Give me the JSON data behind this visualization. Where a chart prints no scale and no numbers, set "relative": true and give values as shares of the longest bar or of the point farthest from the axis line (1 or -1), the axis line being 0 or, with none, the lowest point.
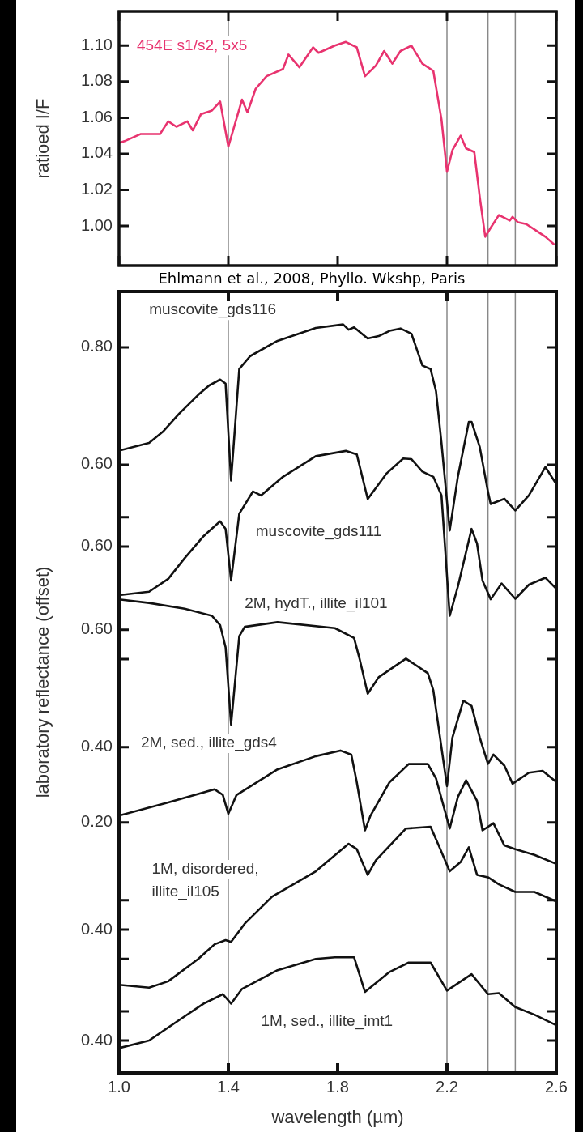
{
  "chart_data": [
    {
      "type": "line",
      "ylabel": "ratioed I/F",
      "xlim": [
        1.0,
        2.6
      ],
      "ylim": [
        0.978,
        1.119
      ],
      "xticks": [
        1,
        1.4,
        1.8,
        2.2,
        2.6
      ],
      "yticks": [
        {
          "value": 1.0,
          "label": "1.00"
        },
        1.02,
        1.04,
        1.06,
        1.08,
        {
          "value": 1.1,
          "label": "1.10"
        }
      ],
      "tick_labels": "y",
      "marker": "none",
      "line_style": "solid",
      "ref_lines": [
        {
          "axis": "x",
          "value": 1.4,
          "color": "#888888"
        },
        {
          "axis": "x",
          "value": 2.2,
          "color": "#888888"
        },
        {
          "axis": "x",
          "value": 2.35,
          "color": "#888888"
        },
        {
          "axis": "x",
          "value": 2.45,
          "color": "#888888"
        }
      ],
      "annotations": [
        "Ehlmann et al., 2008, Phyllo. Wkshp, Paris"
      ],
      "series": [
        {
          "name": "454E s1/s2, 5x5",
          "color": "#e8336f",
          "x": [
            1.0,
            1.02,
            1.08,
            1.15,
            1.18,
            1.21,
            1.25,
            1.27,
            1.3,
            1.34,
            1.37,
            1.4,
            1.45,
            1.47,
            1.5,
            1.54,
            1.6,
            1.62,
            1.66,
            1.71,
            1.73,
            1.79,
            1.83,
            1.87,
            1.9,
            1.94,
            1.97,
            2.0,
            2.03,
            2.07,
            2.11,
            2.15,
            2.18,
            2.2,
            2.22,
            2.25,
            2.27,
            2.3,
            2.32,
            2.34,
            2.36,
            2.39,
            2.43,
            2.44,
            2.46,
            2.49,
            2.53,
            2.56,
            2.59
          ],
          "values": [
            1.046,
            1.047,
            1.051,
            1.051,
            1.058,
            1.055,
            1.058,
            1.053,
            1.062,
            1.064,
            1.069,
            1.044,
            1.07,
            1.063,
            1.076,
            1.083,
            1.087,
            1.095,
            1.088,
            1.099,
            1.096,
            1.1,
            1.102,
            1.099,
            1.083,
            1.089,
            1.097,
            1.09,
            1.097,
            1.1,
            1.09,
            1.086,
            1.059,
            1.03,
            1.042,
            1.05,
            1.043,
            1.041,
            1.016,
            0.994,
            0.999,
            1.006,
            1.003,
            1.005,
            1.002,
            1.001,
            0.997,
            0.994,
            0.99
          ]
        }
      ]
    },
    {
      "type": "line",
      "ylabel": "laboratory reflectance (offset)",
      "xlim": [
        1.0,
        2.6
      ],
      "ylim": [
        -0.436,
        0.895
      ],
      "xticks": [
        1,
        1.4,
        1.8,
        2.2,
        2.6
      ],
      "yticks": [
        {
          "value": 0.8,
          "label": "0.80"
        },
        {
          "value": 0.6,
          "label": "0.60"
        }
      ],
      "tick_labels": "y",
      "marker": "none",
      "line_style": "solid",
      "ref_lines": [
        {
          "axis": "x",
          "value": 1.4,
          "color": "#888888"
        },
        {
          "axis": "x",
          "value": 2.2,
          "color": "#888888"
        },
        {
          "axis": "x",
          "value": 2.35,
          "color": "#888888"
        },
        {
          "axis": "x",
          "value": 2.45,
          "color": "#888888"
        }
      ],
      "series": [
        {
          "name": "muscovite_gds116",
          "color": "#111111",
          "x": [
            1.0,
            1.11,
            1.16,
            1.22,
            1.29,
            1.33,
            1.37,
            1.39,
            1.41,
            1.44,
            1.48,
            1.58,
            1.72,
            1.82,
            1.84,
            1.86,
            1.91,
            1.95,
            1.99,
            2.03,
            2.07,
            2.11,
            2.14,
            2.16,
            2.18,
            2.21,
            2.24,
            2.28,
            2.29,
            2.32,
            2.35,
            2.36,
            2.41,
            2.45,
            2.5,
            2.56,
            2.6
          ],
          "values": [
            0.624,
            0.637,
            0.656,
            0.687,
            0.719,
            0.735,
            0.745,
            0.738,
            0.573,
            0.763,
            0.785,
            0.811,
            0.833,
            0.839,
            0.83,
            0.834,
            0.815,
            0.819,
            0.828,
            0.832,
            0.823,
            0.769,
            0.763,
            0.725,
            0.637,
            0.488,
            0.58,
            0.673,
            0.673,
            0.63,
            0.554,
            0.533,
            0.542,
            0.522,
            0.548,
            0.596,
            0.567
          ]
        }
      ]
    },
    {
      "type": "line",
      "relative": true,
      "xlim": [
        1.0,
        2.6
      ],
      "xticks": [
        1,
        1.4,
        1.8,
        2.2,
        2.6
      ],
      "annotations": [
        "0.60"
      ],
      "tick_labels": false,
      "marker": "none",
      "line_style": "solid",
      "series": [
        {
          "name": "muscovite_gds111",
          "color": "#111111",
          "x": [
            1.0,
            1.11,
            1.18,
            1.24,
            1.31,
            1.37,
            1.39,
            1.41,
            1.44,
            1.49,
            1.52,
            1.6,
            1.72,
            1.83,
            1.87,
            1.91,
            1.98,
            2.04,
            2.07,
            2.11,
            2.15,
            2.18,
            2.21,
            2.24,
            2.29,
            2.31,
            2.33,
            2.36,
            2.4,
            2.45,
            2.5,
            2.56,
            2.6
          ],
          "values": [
            0.125,
            0.146,
            0.224,
            0.349,
            0.484,
            0.573,
            0.527,
            0.214,
            0.619,
            0.754,
            0.73,
            0.843,
            0.968,
            1,
            0.979,
            0.708,
            0.865,
            0.954,
            0.95,
            0.875,
            0.843,
            0.73,
            0,
            0.178,
            0.527,
            0.438,
            0.214,
            0.1,
            0.196,
            0.103,
            0.189,
            0.231,
            0.164
          ]
        }
      ]
    },
    {
      "type": "line",
      "relative": true,
      "xlim": [
        1.0,
        2.6
      ],
      "xticks": [
        1,
        1.4,
        1.8,
        2.2,
        2.6
      ],
      "annotations": [
        "0.60"
      ],
      "tick_labels": false,
      "marker": "none",
      "line_style": "solid",
      "series": [
        {
          "name": "2M, hydT., illite_il101",
          "color": "#111111",
          "x": [
            1.0,
            1.11,
            1.24,
            1.34,
            1.37,
            1.39,
            1.41,
            1.44,
            1.46,
            1.58,
            1.79,
            1.86,
            1.88,
            1.91,
            1.95,
            2.05,
            2.13,
            2.15,
            2.2,
            2.22,
            2.26,
            2.29,
            2.32,
            2.35,
            2.37,
            2.41,
            2.44,
            2.5,
            2.55,
            2.6
          ],
          "values": [
            1,
            0.981,
            0.95,
            0.912,
            0.862,
            0.743,
            0.329,
            0.803,
            0.853,
            0.878,
            0.846,
            0.793,
            0.683,
            0.495,
            0.583,
            0.683,
            0.605,
            0.514,
            0,
            0.26,
            0.458,
            0.429,
            0.26,
            0.119,
            0.169,
            0.11,
            0.013,
            0.072,
            0.082,
            0.022
          ]
        }
      ]
    },
    {
      "type": "line",
      "xlim": [
        1.0,
        2.6
      ],
      "ylim": [
        -0.465,
        1.61
      ],
      "xticks": [
        1,
        1.4,
        1.8,
        2.2,
        2.6
      ],
      "yticks": [
        {
          "value": 0.4,
          "label": "0.40"
        },
        {
          "value": 0.2,
          "label": "0.20"
        }
      ],
      "tick_labels": "y",
      "marker": "none",
      "line_style": "solid",
      "series": [
        {
          "name": "2M, sed., illite_gds4",
          "color": "#111111",
          "x": [
            1.0,
            1.18,
            1.35,
            1.38,
            1.4,
            1.43,
            1.58,
            1.72,
            1.81,
            1.85,
            1.87,
            1.9,
            1.92,
            1.99,
            2.06,
            2.13,
            2.16,
            2.21,
            2.24,
            2.27,
            2.31,
            2.33,
            2.37,
            2.41,
            2.45,
            2.52,
            2.6
          ],
          "values": [
            0.218,
            0.253,
            0.288,
            0.273,
            0.223,
            0.273,
            0.341,
            0.376,
            0.391,
            0.38,
            0.307,
            0.179,
            0.218,
            0.307,
            0.355,
            0.355,
            0.317,
            0.184,
            0.268,
            0.312,
            0.257,
            0.179,
            0.198,
            0.139,
            0.129,
            0.114,
            0.09
          ]
        }
      ]
    },
    {
      "type": "line",
      "relative": true,
      "xlim": [
        1.0,
        2.6
      ],
      "xticks": [
        1,
        1.4,
        1.8,
        2.2,
        2.6
      ],
      "annotations": [
        "0.40"
      ],
      "tick_labels": false,
      "marker": "none",
      "line_style": "solid",
      "series": [
        {
          "name": "1M, disordered, illite_il105",
          "color": "#111111",
          "x": [
            1.0,
            1.11,
            1.18,
            1.29,
            1.35,
            1.39,
            1.41,
            1.46,
            1.56,
            1.72,
            1.84,
            1.87,
            1.91,
            1.94,
            2.05,
            2.14,
            2.17,
            2.21,
            2.25,
            2.28,
            2.31,
            2.35,
            2.39,
            2.45,
            2.52,
            2.6
          ],
          "values": [
            0.018,
            0,
            0.04,
            0.179,
            0.27,
            0.296,
            0.285,
            0.398,
            0.566,
            0.723,
            0.894,
            0.861,
            0.701,
            0.792,
            0.989,
            1,
            0.883,
            0.723,
            0.781,
            0.872,
            0.701,
            0.686,
            0.642,
            0.595,
            0.595,
            0.536
          ]
        }
      ]
    },
    {
      "type": "line",
      "relative": true,
      "xlabel": "wavelength (µm)",
      "xlim": [
        1.0,
        2.6
      ],
      "xticks": [
        {
          "value": 1.0,
          "label": "1.0"
        },
        1.4,
        1.8,
        2.2,
        2.6
      ],
      "annotations": [
        "0.40"
      ],
      "tick_labels": "x",
      "marker": "none",
      "line_style": "solid",
      "series": [
        {
          "name": "1M, sed., illite_imt1",
          "color": "#111111",
          "x": [
            1.0,
            1.11,
            1.22,
            1.31,
            1.38,
            1.41,
            1.45,
            1.58,
            1.72,
            1.79,
            1.86,
            1.9,
            1.99,
            2.06,
            2.14,
            2.2,
            2.29,
            2.35,
            2.39,
            2.45,
            2.52,
            2.6
          ],
          "values": [
            0.214,
            0.28,
            0.457,
            0.599,
            0.681,
            0.599,
            0.726,
            0.888,
            0.985,
            1,
            1,
            0.7,
            0.873,
            0.954,
            0.954,
            0.711,
            0.853,
            0.681,
            0.69,
            0.569,
            0.503,
            0.412
          ]
        }
      ]
    }
  ]
}
